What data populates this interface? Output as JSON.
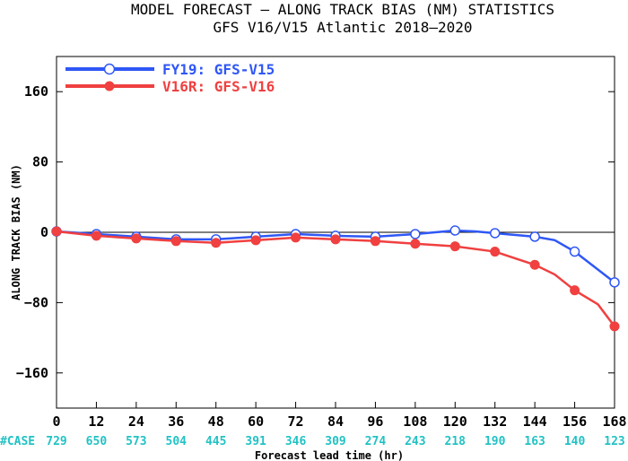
{
  "chart_data": {
    "type": "line",
    "title": "MODEL FORECAST – ALONG TRACK BIAS (NM) STATISTICS",
    "subtitle": "GFS V16/V15 Atlantic 2018–2020",
    "xlabel": "Forecast lead time (hr)",
    "ylabel": "ALONG TRACK BIAS (NM)",
    "xlim": [
      0,
      168
    ],
    "ylim": [
      -200,
      200
    ],
    "x_ticks": [
      0,
      12,
      24,
      36,
      48,
      60,
      72,
      84,
      96,
      108,
      120,
      132,
      144,
      156,
      168
    ],
    "y_ticks": [
      160,
      80,
      0,
      -80,
      -160
    ],
    "y_tick_labels": [
      "160",
      "80",
      "0",
      "−80",
      "−160"
    ],
    "zero_line": true,
    "grid": false,
    "legend_position": "top-left",
    "cases_label": "#CASE",
    "cases": [
      729,
      650,
      573,
      504,
      445,
      391,
      346,
      309,
      274,
      243,
      218,
      190,
      163,
      140,
      123
    ],
    "series": [
      {
        "name": "FY19: GFS-V15",
        "color": "#2f57f6",
        "marker": "open-circle",
        "x": [
          0,
          12,
          24,
          36,
          48,
          60,
          72,
          84,
          96,
          108,
          120,
          126,
          132,
          144,
          150,
          156,
          168
        ],
        "y": [
          1,
          -2,
          -5,
          -8,
          -8,
          -5,
          -2,
          -4,
          -5,
          -2,
          2,
          1,
          -1,
          -5,
          -9,
          -22,
          -57
        ],
        "marker_x": [
          0,
          12,
          24,
          36,
          48,
          60,
          72,
          84,
          96,
          108,
          120,
          132,
          144,
          156,
          168
        ]
      },
      {
        "name": "V16R: GFS-V16",
        "color": "#f04040",
        "marker": "filled-circle",
        "x": [
          0,
          12,
          24,
          36,
          48,
          60,
          72,
          84,
          96,
          108,
          120,
          132,
          144,
          150,
          156,
          163,
          168
        ],
        "y": [
          1,
          -4,
          -7,
          -10,
          -12,
          -9,
          -6,
          -8,
          -10,
          -13,
          -16,
          -22,
          -37,
          -48,
          -66,
          -82,
          -107
        ],
        "marker_x": [
          0,
          12,
          24,
          36,
          48,
          60,
          72,
          84,
          96,
          108,
          120,
          132,
          144,
          156,
          168
        ]
      }
    ]
  }
}
